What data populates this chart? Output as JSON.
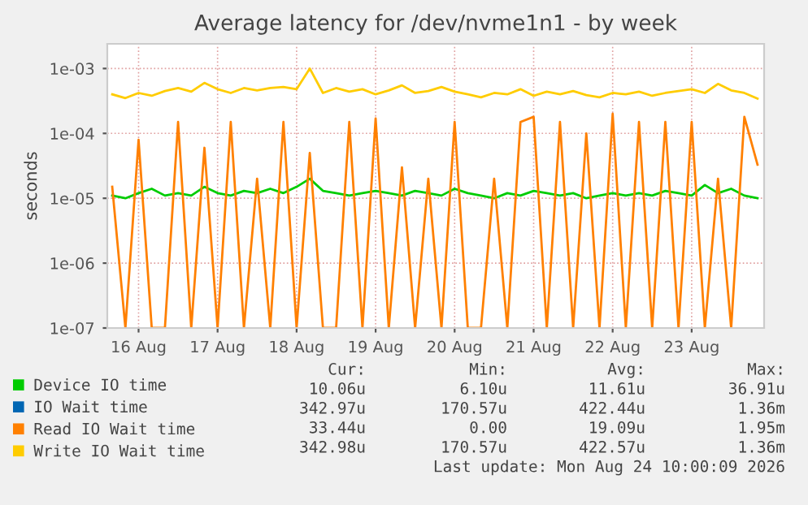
{
  "chart_data": {
    "type": "line",
    "title": "Average latency for /dev/nvme1n1 - by week",
    "ylabel": "seconds",
    "log": "y",
    "grid": true,
    "legend": "bottom",
    "marker": "none",
    "line_style": "solid",
    "x": [
      "2026-08-16T04:00",
      "2026-08-16T08:00",
      "2026-08-16T12:00",
      "2026-08-16T16:00",
      "2026-08-16T20:00",
      "2026-08-17T00:00",
      "2026-08-17T04:00",
      "2026-08-17T08:00",
      "2026-08-17T12:00",
      "2026-08-17T16:00",
      "2026-08-17T20:00",
      "2026-08-18T00:00",
      "2026-08-18T04:00",
      "2026-08-18T08:00",
      "2026-08-18T12:00",
      "2026-08-18T16:00",
      "2026-08-18T20:00",
      "2026-08-19T00:00",
      "2026-08-19T04:00",
      "2026-08-19T08:00",
      "2026-08-19T12:00",
      "2026-08-19T16:00",
      "2026-08-19T20:00",
      "2026-08-20T00:00",
      "2026-08-20T04:00",
      "2026-08-20T08:00",
      "2026-08-20T12:00",
      "2026-08-20T16:00",
      "2026-08-20T20:00",
      "2026-08-21T00:00",
      "2026-08-21T04:00",
      "2026-08-21T08:00",
      "2026-08-21T12:00",
      "2026-08-21T16:00",
      "2026-08-21T20:00",
      "2026-08-22T00:00",
      "2026-08-22T04:00",
      "2026-08-22T08:00",
      "2026-08-22T12:00",
      "2026-08-22T16:00",
      "2026-08-22T20:00",
      "2026-08-23T00:00",
      "2026-08-23T04:00",
      "2026-08-23T08:00",
      "2026-08-23T12:00",
      "2026-08-23T16:00",
      "2026-08-23T20:00",
      "2026-08-24T00:00",
      "2026-08-24T04:00",
      "2026-08-24T08:00"
    ],
    "xlim": [
      "2026-08-16T02:30",
      "2026-08-24T10:00"
    ],
    "xticks": [
      {
        "value": "2026-08-16T12:00",
        "label": "16 Aug"
      },
      {
        "value": "2026-08-17T12:00",
        "label": "17 Aug"
      },
      {
        "value": "2026-08-18T12:00",
        "label": "18 Aug"
      },
      {
        "value": "2026-08-19T12:00",
        "label": "19 Aug"
      },
      {
        "value": "2026-08-20T12:00",
        "label": "20 Aug"
      },
      {
        "value": "2026-08-21T12:00",
        "label": "21 Aug"
      },
      {
        "value": "2026-08-22T12:00",
        "label": "22 Aug"
      },
      {
        "value": "2026-08-23T12:00",
        "label": "23 Aug"
      }
    ],
    "ylim": [
      1e-07,
      0.0024
    ],
    "yticks": [
      {
        "value": 1e-07,
        "label": "1e-07"
      },
      {
        "value": 1e-06,
        "label": "1e-06"
      },
      {
        "value": 1e-05,
        "label": "1e-05"
      },
      {
        "value": 0.0001,
        "label": "1e-04"
      },
      {
        "value": 0.001,
        "label": "1e-03"
      }
    ],
    "series": [
      {
        "name": "Device IO time",
        "color": "#00cc00",
        "values": [
          1.1e-05,
          1e-05,
          1.2e-05,
          1.4e-05,
          1.1e-05,
          1.2e-05,
          1.1e-05,
          1.5e-05,
          1.2e-05,
          1.1e-05,
          1.3e-05,
          1.2e-05,
          1.4e-05,
          1.2e-05,
          1.5e-05,
          2e-05,
          1.3e-05,
          1.2e-05,
          1.1e-05,
          1.2e-05,
          1.3e-05,
          1.2e-05,
          1.1e-05,
          1.3e-05,
          1.2e-05,
          1.1e-05,
          1.4e-05,
          1.2e-05,
          1.1e-05,
          1e-05,
          1.2e-05,
          1.1e-05,
          1.3e-05,
          1.2e-05,
          1.1e-05,
          1.2e-05,
          1e-05,
          1.1e-05,
          1.2e-05,
          1.1e-05,
          1.2e-05,
          1.1e-05,
          1.3e-05,
          1.2e-05,
          1.1e-05,
          1.6e-05,
          1.2e-05,
          1.4e-05,
          1.1e-05,
          1e-05
        ]
      },
      {
        "name": "IO Wait time",
        "color": "#0066b3",
        "values": [
          null,
          null,
          null,
          null,
          null,
          null,
          null,
          null,
          null,
          null,
          null,
          null,
          null,
          null,
          null,
          null,
          null,
          null,
          null,
          null,
          null,
          null,
          null,
          null,
          null,
          null,
          null,
          null,
          null,
          null,
          null,
          null,
          null,
          null,
          null,
          null,
          null,
          null,
          null,
          null,
          null,
          null,
          null,
          null,
          null,
          null,
          null,
          null,
          null,
          null
        ]
      },
      {
        "name": "Read IO Wait time",
        "color": "#ff8000",
        "values": [
          1.5e-05,
          1e-07,
          8e-05,
          1e-07,
          1e-07,
          0.00015,
          1e-07,
          6e-05,
          1e-07,
          0.00015,
          1e-07,
          2e-05,
          1e-07,
          0.00015,
          1e-07,
          5e-05,
          1e-07,
          1e-07,
          0.00015,
          1e-07,
          0.00017,
          1e-07,
          3e-05,
          1e-07,
          2e-05,
          1e-07,
          0.00015,
          1e-07,
          1e-07,
          2e-05,
          1e-07,
          0.00015,
          0.00018,
          1e-07,
          0.00015,
          1e-07,
          0.0001,
          1e-07,
          0.0002,
          1e-07,
          0.00015,
          1e-07,
          0.00015,
          1e-07,
          0.00015,
          1e-07,
          2e-05,
          1e-07,
          0.00018,
          3.3e-05
        ]
      },
      {
        "name": "Write IO Wait time",
        "color": "#ffcc00",
        "values": [
          0.0004,
          0.00035,
          0.00042,
          0.00038,
          0.00045,
          0.0005,
          0.00044,
          0.0006,
          0.00048,
          0.00042,
          0.0005,
          0.00046,
          0.0005,
          0.00052,
          0.00048,
          0.001,
          0.00042,
          0.0005,
          0.00044,
          0.00048,
          0.0004,
          0.00046,
          0.00055,
          0.00042,
          0.00045,
          0.00052,
          0.00044,
          0.0004,
          0.00036,
          0.00042,
          0.0004,
          0.00048,
          0.00038,
          0.00044,
          0.0004,
          0.00045,
          0.00039,
          0.00036,
          0.00042,
          0.0004,
          0.00044,
          0.00038,
          0.00042,
          0.00045,
          0.00048,
          0.00042,
          0.00058,
          0.00046,
          0.00042,
          0.000343
        ]
      }
    ],
    "annotations": [
      "Cur:",
      "Min:",
      "Avg:",
      "Max:",
      "10.06u",
      "6.10u",
      "11.61u",
      "36.91u",
      "342.97u",
      "170.57u",
      "422.44u",
      "1.36m",
      "33.44u",
      "0.00",
      "19.09u",
      "1.95m",
      "342.98u",
      "170.57u",
      "422.57u",
      "1.36m",
      "Last update: Mon Aug 24 10:00:09 2026"
    ]
  }
}
